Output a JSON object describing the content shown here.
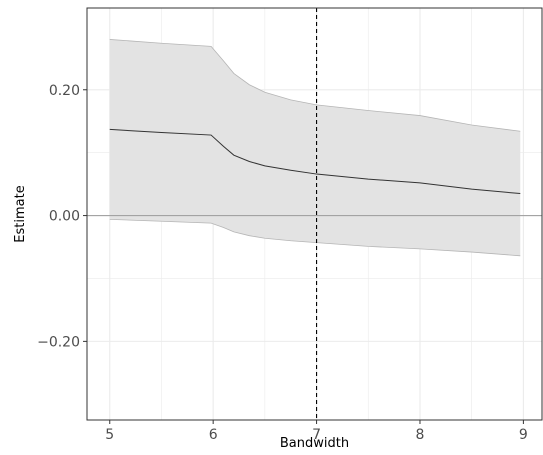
{
  "chart_data": {
    "type": "line",
    "xlabel": "Bandwidth",
    "ylabel": "Estimate",
    "xlim": [
      4.78,
      9.18
    ],
    "ylim": [
      -0.325,
      0.33
    ],
    "x_ticks": [
      5,
      6,
      7,
      8,
      9
    ],
    "x_tick_labels": [
      "5",
      "6",
      "7",
      "8",
      "9"
    ],
    "y_ticks": [
      -0.2,
      0.0,
      0.2
    ],
    "y_tick_labels": [
      "−0.20",
      "0.00",
      "0.20"
    ],
    "x_minor_ticks": [
      5.5,
      6.5,
      7.5,
      8.5
    ],
    "y_minor_ticks": [
      -0.1,
      0.1
    ],
    "grid": true,
    "reference_hline": 0,
    "reference_vline": 7,
    "series": [
      {
        "x": [
          5.0,
          5.5,
          5.98,
          6.1,
          6.2,
          6.35,
          6.5,
          6.75,
          7.0,
          7.5,
          8.0,
          8.5,
          8.97
        ],
        "estimate": [
          0.137,
          0.132,
          0.128,
          0.11,
          0.096,
          0.086,
          0.079,
          0.072,
          0.066,
          0.058,
          0.052,
          0.042,
          0.035
        ],
        "ci_lower": [
          -0.006,
          -0.009,
          -0.012,
          -0.019,
          -0.026,
          -0.032,
          -0.036,
          -0.04,
          -0.043,
          -0.049,
          -0.053,
          -0.058,
          -0.064
        ],
        "ci_upper": [
          0.28,
          0.274,
          0.269,
          0.246,
          0.226,
          0.208,
          0.196,
          0.184,
          0.176,
          0.167,
          0.159,
          0.144,
          0.134
        ]
      }
    ],
    "colors": {
      "ribbon": "#e3e3e3",
      "ribbon_border": "#b5b5b5",
      "line": "#333333",
      "grid": "#ebebeb",
      "zero_line": "#9a9a9a",
      "vline": "#000000",
      "panel_border": "#333333"
    }
  }
}
